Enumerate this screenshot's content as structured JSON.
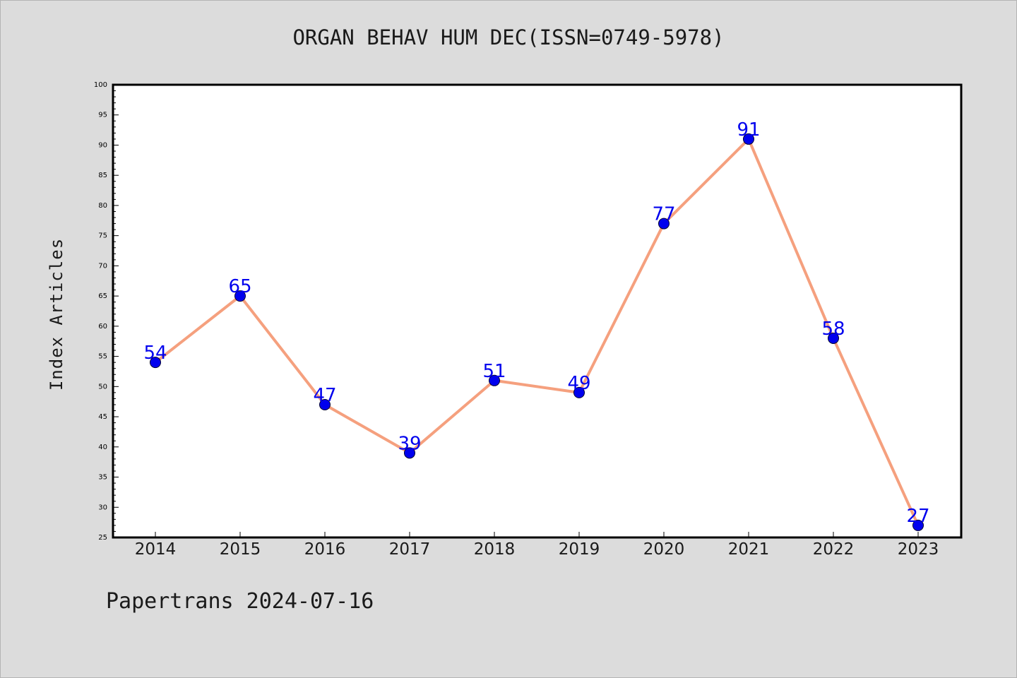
{
  "chart_data": {
    "type": "line",
    "title": "ORGAN BEHAV HUM DEC(ISSN=0749-5978)",
    "xlabel": "",
    "ylabel": "Index Articles",
    "categories": [
      "2014",
      "2015",
      "2016",
      "2017",
      "2018",
      "2019",
      "2020",
      "2021",
      "2022",
      "2023"
    ],
    "series": [
      {
        "values": [
          54,
          65,
          47,
          39,
          51,
          49,
          77,
          91,
          58,
          27
        ],
        "line_color": "#f5a07e",
        "marker_color": "#0000ee"
      }
    ],
    "data_labels": [
      "54",
      "65",
      "47",
      "39",
      "51",
      "49",
      "77",
      "91",
      "58",
      "27"
    ],
    "ylim": [
      25,
      100
    ],
    "yticks": [
      "25",
      "30",
      "35",
      "40",
      "45",
      "50",
      "55",
      "60",
      "65",
      "70",
      "75",
      "80",
      "85",
      "90",
      "95",
      "100"
    ],
    "grid": false,
    "label_color": "#0000ee"
  },
  "footer": "Papertrans 2024-07-16"
}
